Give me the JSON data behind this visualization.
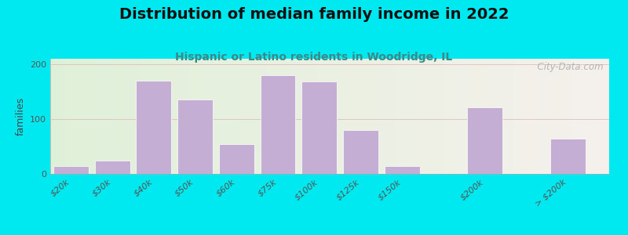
{
  "title": "Distribution of median family income in 2022",
  "subtitle": "Hispanic or Latino residents in Woodridge, IL",
  "ylabel": "families",
  "categories": [
    "$20k",
    "$30k",
    "$40k",
    "$50k",
    "$60k",
    "$75k",
    "$100k",
    "$125k",
    "$150k",
    "$200k",
    "> $200k"
  ],
  "values": [
    15,
    25,
    170,
    135,
    55,
    180,
    168,
    80,
    15,
    122,
    65
  ],
  "bar_color": "#c4aed4",
  "bar_edge_color": "#ffffff",
  "background_color": "#00e8f0",
  "title_color": "#111111",
  "subtitle_color": "#3a8a8a",
  "ylabel_color": "#444444",
  "tick_color": "#555555",
  "title_fontsize": 14,
  "subtitle_fontsize": 10,
  "ylabel_fontsize": 9,
  "tick_fontsize": 8,
  "ylim": [
    0,
    210
  ],
  "yticks": [
    0,
    100,
    200
  ],
  "watermark": "  City-Data.com",
  "grid_color": "#ddbbbb",
  "bar_positions": [
    0,
    1,
    2,
    3,
    4,
    5,
    6,
    7,
    8,
    10,
    12
  ],
  "bar_width": 0.85
}
